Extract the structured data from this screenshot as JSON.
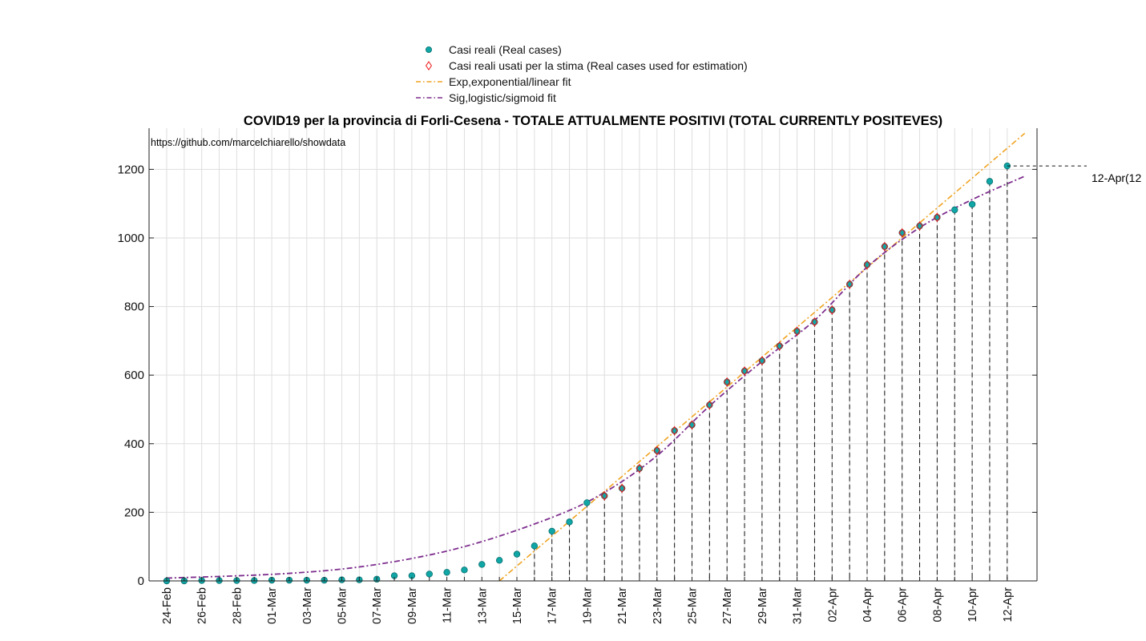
{
  "chart_data": {
    "type": "scatter",
    "title": "COVID19 per la provincia di Forli-Cesena - TOTALE ATTUALMENTE POSITIVI (TOTAL CURRENTLY POSITEVES)",
    "source_note": "https://github.com/marcelchiarello/showdata",
    "callout": "12-Apr(12",
    "xlabel": "",
    "ylabel": "",
    "ylim": [
      0,
      1320
    ],
    "yticks": [
      0,
      200,
      400,
      600,
      800,
      1000,
      1200
    ],
    "grid": true,
    "legend_position": "top, outside",
    "x_dates": [
      "24-Feb",
      "25-Feb",
      "26-Feb",
      "27-Feb",
      "28-Feb",
      "29-Feb",
      "01-Mar",
      "02-Mar",
      "03-Mar",
      "04-Mar",
      "05-Mar",
      "06-Mar",
      "07-Mar",
      "08-Mar",
      "09-Mar",
      "10-Mar",
      "11-Mar",
      "12-Mar",
      "13-Mar",
      "14-Mar",
      "15-Mar",
      "16-Mar",
      "17-Mar",
      "18-Mar",
      "19-Mar",
      "20-Mar",
      "21-Mar",
      "22-Mar",
      "23-Mar",
      "24-Mar",
      "25-Mar",
      "26-Mar",
      "27-Mar",
      "28-Mar",
      "29-Mar",
      "30-Mar",
      "31-Mar",
      "01-Apr",
      "02-Apr",
      "03-Apr",
      "04-Apr",
      "05-Apr",
      "06-Apr",
      "07-Apr",
      "08-Apr",
      "09-Apr",
      "10-Apr",
      "11-Apr",
      "12-Apr"
    ],
    "x_tick_labels": [
      "24-Feb",
      "26-Feb",
      "28-Feb",
      "01-Mar",
      "03-Mar",
      "05-Mar",
      "07-Mar",
      "09-Mar",
      "11-Mar",
      "13-Mar",
      "15-Mar",
      "17-Mar",
      "19-Mar",
      "21-Mar",
      "23-Mar",
      "25-Mar",
      "27-Mar",
      "29-Mar",
      "31-Mar",
      "02-Apr",
      "04-Apr",
      "06-Apr",
      "08-Apr",
      "10-Apr",
      "12-Apr"
    ],
    "series": [
      {
        "name": "Casi reali (Real cases)",
        "values": [
          0,
          0,
          1,
          1,
          1,
          1,
          2,
          2,
          2,
          2,
          3,
          3,
          5,
          15,
          15,
          20,
          25,
          32,
          48,
          60,
          78,
          102,
          145,
          172,
          228,
          248,
          270,
          328,
          380,
          438,
          455,
          513,
          580,
          612,
          642,
          685,
          728,
          755,
          790,
          865,
          922,
          975,
          1015,
          1035,
          1060,
          1082,
          1098,
          1165,
          1210
        ],
        "color": "#11a6a6",
        "marker": "circle"
      },
      {
        "name": "Casi reali usati per la stima (Real cases used for estimation)",
        "x_from": "20-Mar",
        "x_to": "08-Apr",
        "color": "#ee1111",
        "marker": "diamond"
      },
      {
        "name": "Exp,exponential/linear fit",
        "fit": "linear",
        "values_at": {
          "14-Mar": 0,
          "13-Apr": 1305
        },
        "color": "#f0a422",
        "style": "dash-dot"
      },
      {
        "name": "Sig,logistic/sigmoid fit",
        "fit": "logistic",
        "samples": {
          "24-Feb": 8,
          "02-Mar": 22,
          "07-Mar": 48,
          "12-Mar": 100,
          "17-Mar": 185,
          "20-Mar": 258,
          "23-Mar": 365,
          "26-Mar": 510,
          "29-Mar": 640,
          "01-Apr": 760,
          "04-Apr": 915,
          "07-Apr": 1030,
          "10-Apr": 1112,
          "13-Apr": 1180
        },
        "color": "#7e2f8e",
        "style": "dash-dot"
      }
    ]
  }
}
